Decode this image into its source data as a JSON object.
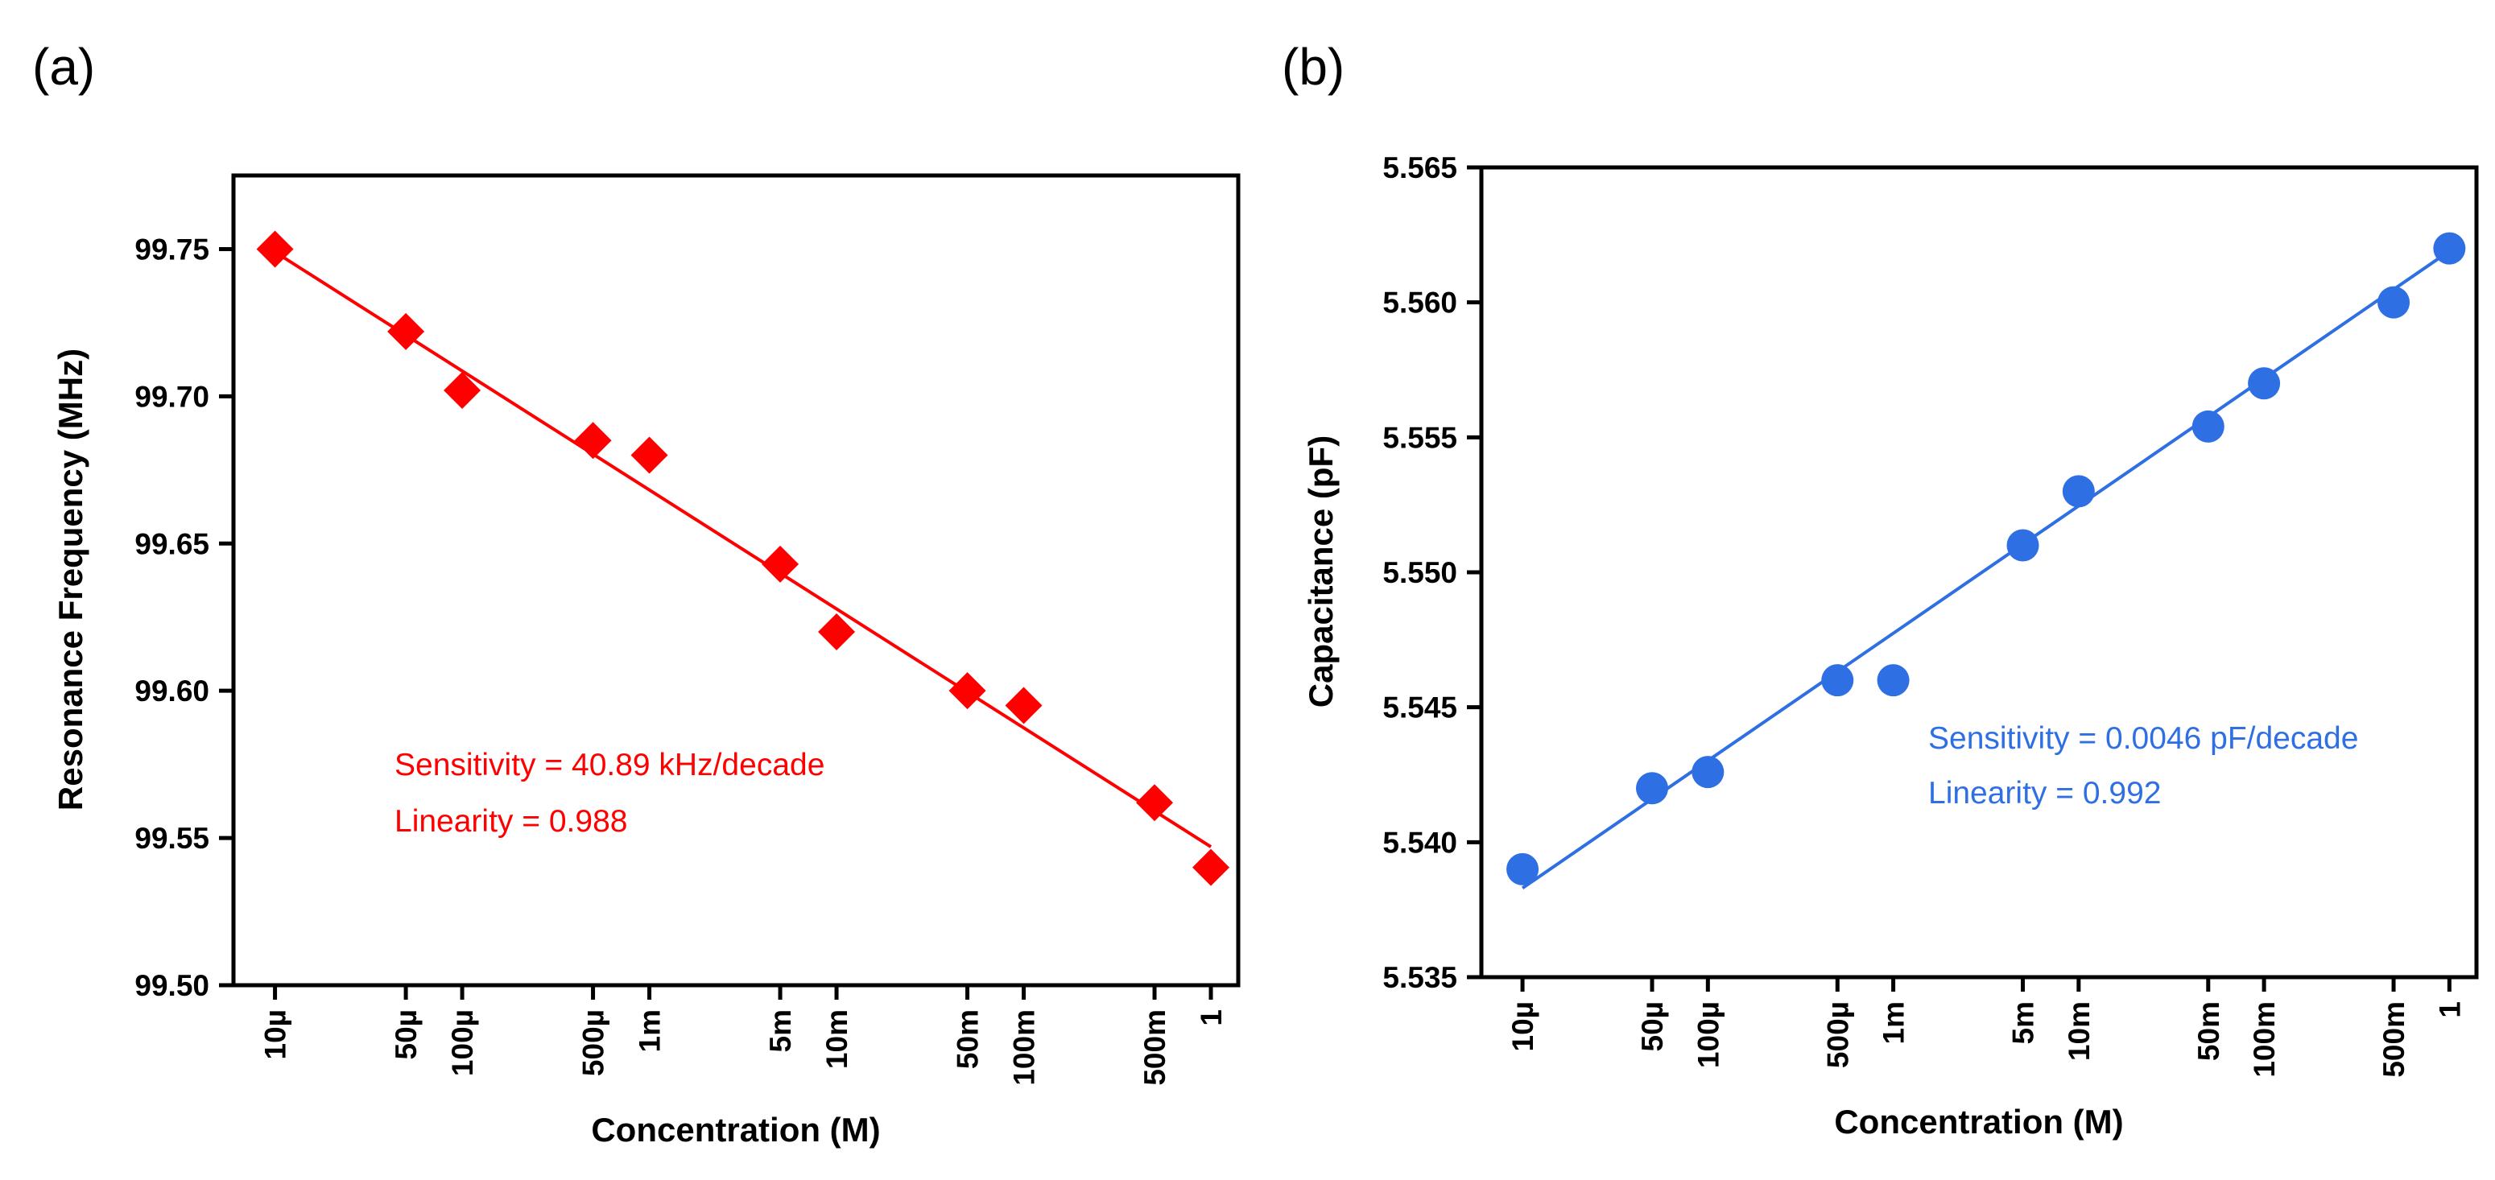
{
  "chart_data": [
    {
      "type": "scatter",
      "panel_label": "(a)",
      "xlabel": "Concentration (M)",
      "ylabel": "Resonance Frequency (MHz)",
      "x_scale": "log",
      "x_ticks": [
        1e-05,
        5e-05,
        0.0001,
        0.0005,
        0.001,
        0.005,
        0.01,
        0.05,
        0.1,
        0.5,
        1
      ],
      "x_tick_labels": [
        "10µ",
        "50µ",
        "100µ",
        "500µ",
        "1m",
        "5m",
        "10m",
        "50m",
        "100m",
        "500m",
        "1"
      ],
      "xlim": [
        6e-06,
        1.4
      ],
      "ylim": [
        99.5,
        99.775
      ],
      "y_ticks": [
        99.5,
        99.55,
        99.6,
        99.65,
        99.7,
        99.75
      ],
      "y_tick_labels": [
        "99.50",
        "99.55",
        "99.60",
        "99.65",
        "99.70",
        "99.75"
      ],
      "marker": "diamond",
      "color": "#ff0000",
      "grid": false,
      "series": [
        {
          "x": [
            1e-05,
            5e-05,
            0.0001,
            0.0005,
            0.001,
            0.005,
            0.01,
            0.05,
            0.1,
            0.5,
            1
          ],
          "values": [
            99.75,
            99.722,
            99.702,
            99.685,
            99.68,
            99.643,
            99.62,
            99.6,
            99.595,
            99.562,
            99.54
          ]
        }
      ],
      "fit_line": {
        "y_start": 99.749,
        "y_end": 99.547
      },
      "annotations": [
        "Sensitivity = 40.89 kHz/decade",
        "Linearity = 0.988"
      ]
    },
    {
      "type": "scatter",
      "panel_label": "(b)",
      "xlabel": "Concentration (M)",
      "ylabel": "Capacitance (pF)",
      "x_scale": "log",
      "x_ticks": [
        1e-05,
        5e-05,
        0.0001,
        0.0005,
        0.001,
        0.005,
        0.01,
        0.05,
        0.1,
        0.5,
        1
      ],
      "x_tick_labels": [
        "10µ",
        "50µ",
        "100µ",
        "500µ",
        "1m",
        "5m",
        "10m",
        "50m",
        "100m",
        "500m",
        "1"
      ],
      "xlim": [
        6e-06,
        1.4
      ],
      "ylim": [
        5.535,
        5.565
      ],
      "y_ticks": [
        5.535,
        5.54,
        5.545,
        5.55,
        5.555,
        5.56,
        5.565
      ],
      "y_tick_labels": [
        "5.535",
        "5.540",
        "5.545",
        "5.550",
        "5.555",
        "5.560",
        "5.565"
      ],
      "marker": "circle",
      "color": "#2f6fe4",
      "grid": false,
      "series": [
        {
          "x": [
            1e-05,
            5e-05,
            0.0001,
            0.0005,
            0.001,
            0.005,
            0.01,
            0.05,
            0.1,
            0.5,
            1
          ],
          "values": [
            5.539,
            5.542,
            5.5426,
            5.546,
            5.546,
            5.551,
            5.553,
            5.5554,
            5.557,
            5.56,
            5.562
          ]
        }
      ],
      "fit_line": {
        "y_start": 5.5383,
        "y_end": 5.5619
      },
      "annotations": [
        "Sensitivity = 0.0046 pF/decade",
        "Linearity = 0.992"
      ]
    }
  ]
}
